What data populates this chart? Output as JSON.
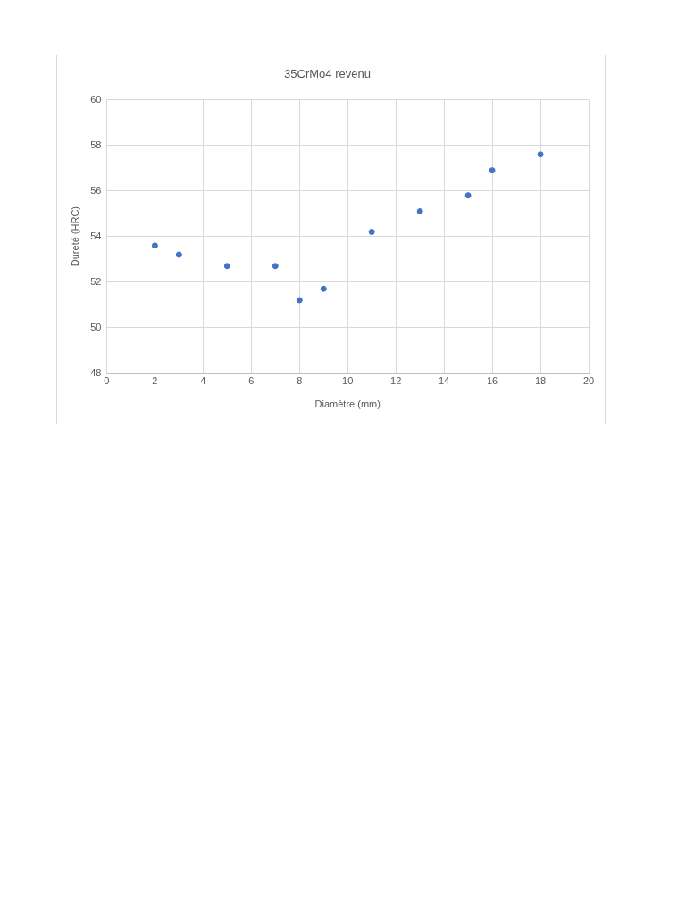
{
  "chart_data": {
    "type": "scatter",
    "title": "35CrMo4 revenu",
    "xlabel": "Diamètre (mm)",
    "ylabel": "Dureté (HRC)",
    "x": [
      2,
      3,
      5,
      7,
      8,
      9,
      11,
      13,
      15,
      16,
      18
    ],
    "series": [
      {
        "color": "#4472c4",
        "values": [
          53.6,
          53.2,
          52.7,
          52.7,
          51.2,
          51.7,
          54.2,
          55.1,
          55.8,
          56.9,
          57.6
        ]
      }
    ],
    "xlim": [
      0,
      20
    ],
    "xticks": [
      0,
      2,
      4,
      6,
      8,
      10,
      12,
      14,
      16,
      18,
      20
    ],
    "ylim": [
      48,
      60
    ],
    "yticks": [
      48,
      50,
      52,
      54,
      56,
      58,
      60
    ],
    "grid": true,
    "legend": false,
    "marker": "circle"
  }
}
